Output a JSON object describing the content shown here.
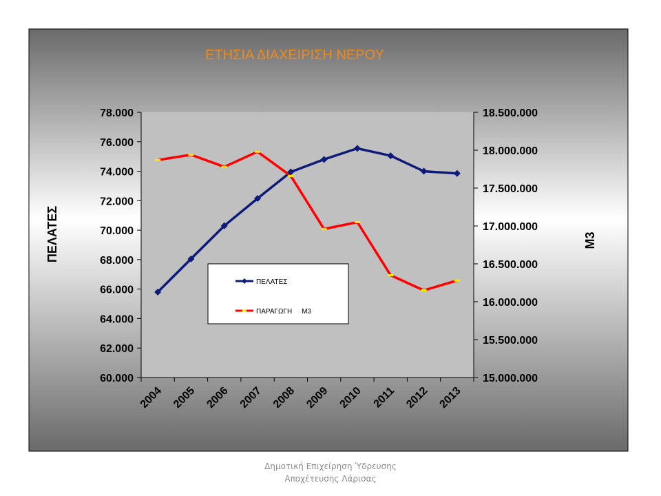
{
  "chart_data": {
    "type": "line",
    "title": "ΕΤΗΣΙΑ ΔΙΑΧΕΙΡΙΣΗ ΝΕΡΟΥ",
    "categories": [
      "2004",
      "2005",
      "2006",
      "2007",
      "2008",
      "2009",
      "2010",
      "2011",
      "2012",
      "2013"
    ],
    "ylabel": "ΠΕΛΑΤΕΣ",
    "y2label": "M3",
    "ylim": [
      60000,
      78000
    ],
    "y2lim": [
      15000000,
      18500000
    ],
    "yticks": [
      "60.000",
      "62.000",
      "64.000",
      "66.000",
      "68.000",
      "70.000",
      "72.000",
      "74.000",
      "76.000",
      "78.000"
    ],
    "y2ticks": [
      "15.000.000",
      "15.500.000",
      "16.000.000",
      "16.500.000",
      "17.000.000",
      "17.500.000",
      "18.000.000",
      "18.500.000"
    ],
    "grid": false,
    "legend_position": "bottom-left",
    "series": [
      {
        "name": "ΠΕΛΑΤΕΣ",
        "axis": "left",
        "color": "#0d1a78",
        "marker": "diamond",
        "values": [
          65800,
          68050,
          70300,
          72150,
          73950,
          74800,
          75550,
          75050,
          74000,
          73850
        ]
      },
      {
        "name": "ΠΑΡΑΓΩΓΗ     M3",
        "axis": "right",
        "color": "#ff0000",
        "marker": "dash",
        "values": [
          17870000,
          17940000,
          17780000,
          17980000,
          17660000,
          16960000,
          17050000,
          16350000,
          16150000,
          16280000
        ]
      }
    ]
  },
  "footer": {
    "line1": "Δημοτική Επιχείρηση Ύδρευσης",
    "line2": "Αποχέτευσης Λάρισας"
  }
}
